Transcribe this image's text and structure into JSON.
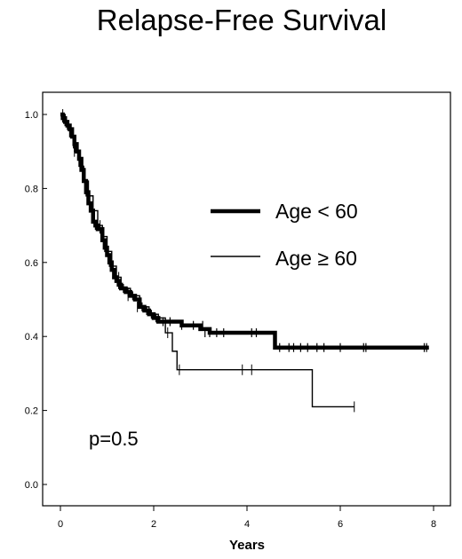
{
  "chart_data": {
    "type": "line",
    "subtype": "kaplan-meier step",
    "title": "Relapse-Free Survival",
    "xlabel": "Years",
    "ylabel": "",
    "xlim": [
      0,
      8
    ],
    "ylim": [
      0,
      1
    ],
    "x_ticks": [
      "0",
      "2",
      "4",
      "6",
      "8"
    ],
    "y_ticks": [
      "0.0",
      "0.2",
      "0.4",
      "0.6",
      "0.8",
      "1.0"
    ],
    "grid": false,
    "legend_position": "right-middle",
    "annotation": "p=0.5",
    "series": [
      {
        "name": "Age < 60",
        "line_weight": "thick",
        "color": "#000000",
        "x": [
          0,
          0.05,
          0.1,
          0.15,
          0.2,
          0.25,
          0.3,
          0.35,
          0.4,
          0.45,
          0.5,
          0.55,
          0.6,
          0.65,
          0.7,
          0.75,
          0.8,
          0.9,
          0.95,
          1.0,
          1.05,
          1.1,
          1.15,
          1.2,
          1.25,
          1.3,
          1.4,
          1.5,
          1.6,
          1.7,
          1.8,
          1.9,
          2.0,
          2.1,
          2.4,
          2.6,
          3.0,
          3.2,
          4.6,
          7.9
        ],
        "y": [
          1.0,
          0.99,
          0.98,
          0.97,
          0.96,
          0.94,
          0.92,
          0.9,
          0.88,
          0.85,
          0.82,
          0.79,
          0.76,
          0.74,
          0.71,
          0.7,
          0.69,
          0.66,
          0.64,
          0.62,
          0.6,
          0.58,
          0.56,
          0.55,
          0.54,
          0.53,
          0.52,
          0.51,
          0.5,
          0.48,
          0.47,
          0.46,
          0.45,
          0.44,
          0.44,
          0.43,
          0.42,
          0.41,
          0.37,
          0.37
        ],
        "censor_x": [
          0.05,
          0.15,
          0.28,
          0.42,
          0.55,
          0.75,
          0.85,
          0.95,
          1.05,
          1.25,
          1.35,
          1.45,
          1.55,
          1.75,
          1.85,
          1.95,
          2.05,
          2.2,
          2.35,
          2.6,
          2.85,
          3.05,
          3.1,
          3.2,
          3.35,
          3.5,
          4.1,
          4.2,
          4.7,
          4.9,
          5.0,
          5.15,
          5.3,
          5.5,
          5.65,
          6.0,
          6.5,
          6.55,
          7.8,
          7.85
        ],
        "censor_y": [
          0.99,
          0.97,
          0.92,
          0.88,
          0.79,
          0.7,
          0.69,
          0.64,
          0.6,
          0.54,
          0.53,
          0.52,
          0.51,
          0.48,
          0.47,
          0.46,
          0.45,
          0.44,
          0.44,
          0.43,
          0.43,
          0.43,
          0.41,
          0.41,
          0.41,
          0.41,
          0.41,
          0.41,
          0.37,
          0.37,
          0.37,
          0.37,
          0.37,
          0.37,
          0.37,
          0.37,
          0.37,
          0.37,
          0.37,
          0.37
        ]
      },
      {
        "name": "Age ≥ 60",
        "line_weight": "thin",
        "color": "#000000",
        "x": [
          0,
          0.1,
          0.2,
          0.3,
          0.4,
          0.5,
          0.6,
          0.7,
          0.8,
          0.9,
          1.0,
          1.1,
          1.2,
          1.3,
          1.5,
          1.7,
          1.9,
          2.1,
          2.25,
          2.4,
          2.5,
          5.4,
          6.3
        ],
        "y": [
          1.0,
          0.97,
          0.94,
          0.9,
          0.86,
          0.82,
          0.78,
          0.74,
          0.7,
          0.67,
          0.63,
          0.59,
          0.56,
          0.53,
          0.51,
          0.48,
          0.46,
          0.45,
          0.41,
          0.36,
          0.31,
          0.21,
          0.21
        ],
        "censor_x": [
          0.05,
          0.3,
          0.6,
          0.85,
          1.25,
          1.45,
          1.65,
          2.3,
          2.55,
          3.9,
          4.1,
          6.3
        ],
        "censor_y": [
          1.0,
          0.9,
          0.78,
          0.7,
          0.56,
          0.51,
          0.48,
          0.41,
          0.31,
          0.31,
          0.31,
          0.21
        ]
      }
    ]
  }
}
